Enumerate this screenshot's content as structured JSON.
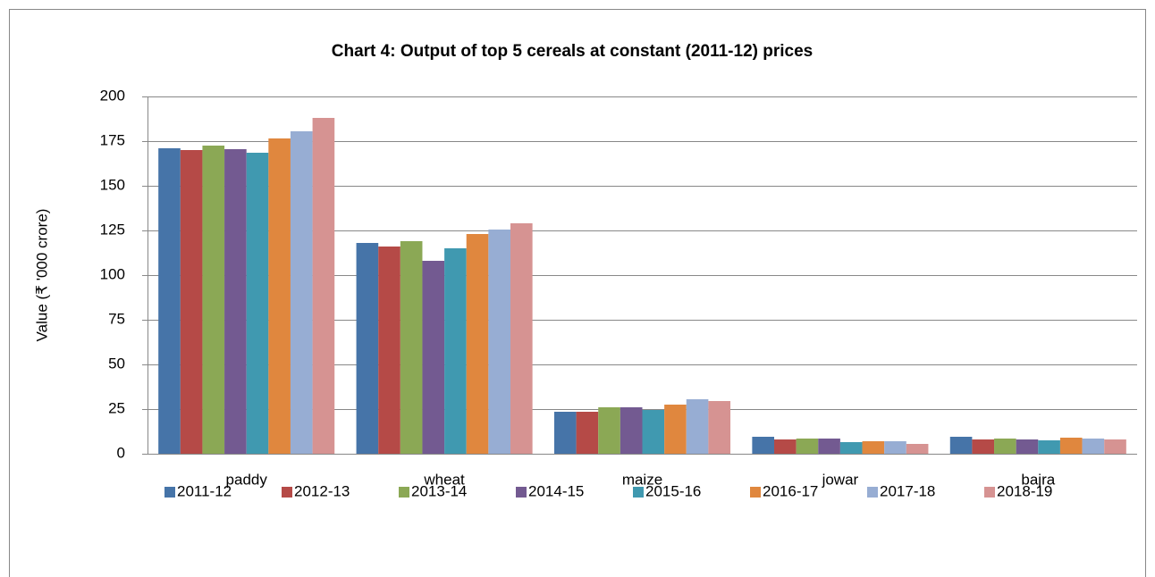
{
  "chart_data": {
    "type": "bar",
    "title": "Chart 4: Output of top 5 cereals at constant (2011-12) prices",
    "y_label": "Value (₹ '000 crore)",
    "categories": [
      "paddy",
      "wheat",
      "maize",
      "jowar",
      "bajra"
    ],
    "series": [
      {
        "name": "2011-12",
        "color": "#4674a8",
        "values": [
          171,
          118,
          23.5,
          9.5,
          9.5
        ]
      },
      {
        "name": "2012-13",
        "color": "#b54a47",
        "values": [
          170,
          116,
          23.5,
          8,
          8
        ]
      },
      {
        "name": "2013-14",
        "color": "#8ba855",
        "values": [
          172.5,
          119,
          26,
          8.5,
          8.5
        ]
      },
      {
        "name": "2014-15",
        "color": "#735a91",
        "values": [
          170.5,
          108,
          26,
          8.5,
          8
        ]
      },
      {
        "name": "2015-16",
        "color": "#4099b0",
        "values": [
          168.5,
          115,
          24.5,
          6.5,
          7.5
        ]
      },
      {
        "name": "2016-17",
        "color": "#e0873e",
        "values": [
          176.5,
          123,
          27.5,
          7,
          9
        ]
      },
      {
        "name": "2017-18",
        "color": "#97add3",
        "values": [
          180.5,
          125.5,
          30.5,
          7,
          8.5
        ]
      },
      {
        "name": "2018-19",
        "color": "#d69392",
        "values": [
          188,
          129,
          29.5,
          5.5,
          8
        ]
      }
    ],
    "ylim": [
      0,
      200
    ],
    "yticks": [
      0,
      25,
      50,
      75,
      100,
      125,
      150,
      175,
      200
    ],
    "grid": true,
    "legend": "bottom"
  }
}
